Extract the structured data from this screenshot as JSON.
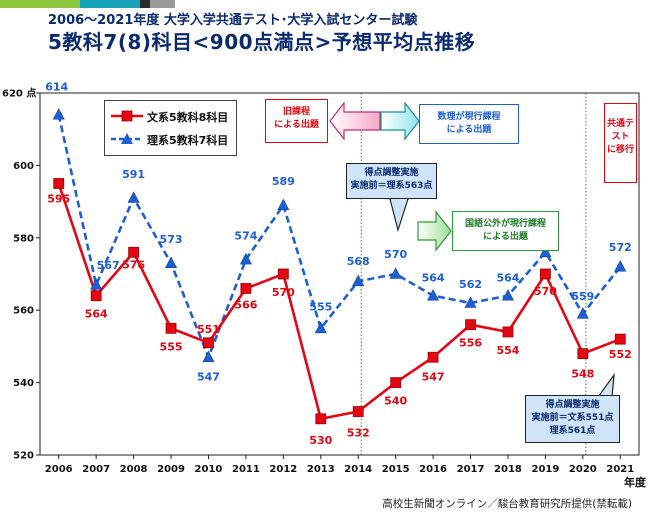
{
  "header": {
    "title_line1": "2006～2021年度 大学入学共通テスト･大学入試センター試験",
    "title_line2": "5教科7(8)科目<900点満点>予想平均点推移"
  },
  "colors": {
    "bar": [
      "#8dc63f",
      "#17a3b8",
      "#2b2b2b",
      "#9a9a9a",
      "#ffffff"
    ],
    "series_red": "#e30613",
    "series_blue": "#1f5fd6"
  },
  "chart_data": {
    "type": "line",
    "x": [
      "2006",
      "2007",
      "2008",
      "2009",
      "2010",
      "2011",
      "2012",
      "2013",
      "2014",
      "2015",
      "2016",
      "2017",
      "2018",
      "2019",
      "2020",
      "2021"
    ],
    "xlabel": "年度",
    "ylabel": "点",
    "ylim": [
      520,
      620
    ],
    "yticks": [
      520,
      540,
      560,
      580,
      600,
      620
    ],
    "grid": false,
    "legend_position": "top-left",
    "series": [
      {
        "name": "文系5教科8科目",
        "marker": "square",
        "line": "solid",
        "values": [
          595,
          564,
          576,
          555,
          551,
          566,
          570,
          530,
          532,
          540,
          547,
          556,
          554,
          570,
          548,
          552
        ],
        "labels": [
          "595",
          "564",
          "576",
          "555",
          "551",
          "566",
          "570",
          "530",
          "532",
          "540",
          "547",
          "556",
          "554",
          "570",
          "548",
          "552"
        ]
      },
      {
        "name": "理系5教科7科目",
        "marker": "triangle",
        "line": "dashed",
        "values": [
          614,
          567,
          591,
          573,
          547,
          574,
          589,
          555,
          568,
          570,
          564,
          562,
          564,
          576,
          559,
          572
        ],
        "labels": [
          "614",
          "567",
          "591",
          "573",
          "547",
          "574",
          "589",
          "555",
          "568",
          "570",
          "564",
          "562",
          "564",
          "576",
          "559",
          "572"
        ]
      }
    ],
    "y_top_label": "620 点",
    "annotations": {
      "old_course": "旧課程\nによる出題",
      "math_course": "数理が現行課程\nによる出題",
      "adjust_2015": "得点調整実施\n実施前＝理系563点",
      "national_course": "国語公外が現行課程\nによる出題",
      "common_test": "共通テ\nスト\nに移行",
      "adjust_2021": "得点調整実施\n実施前＝文系551点\n理系561点"
    }
  },
  "credit": "高校生新聞オンライン／駿台教育研究所提供(禁転載)"
}
